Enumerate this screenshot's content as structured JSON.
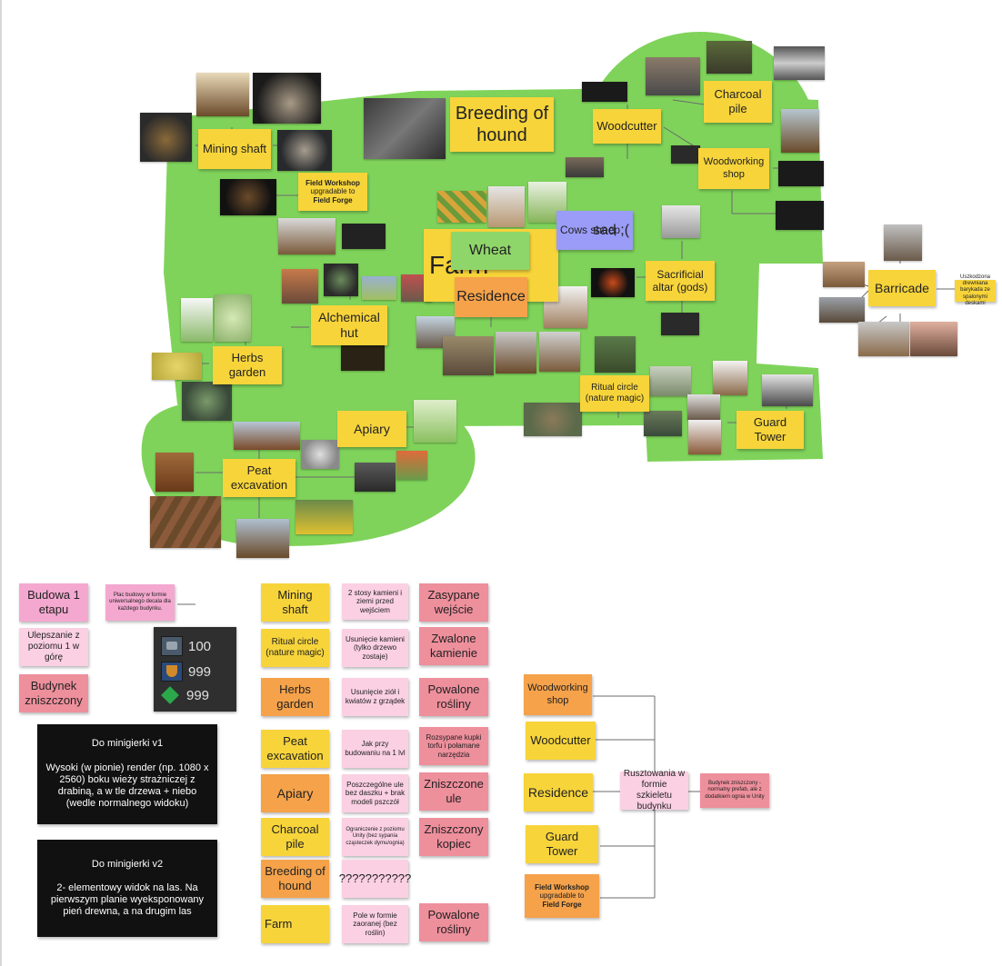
{
  "board": {
    "area_colors": {
      "land": "#7fd35a",
      "sticky_yellow": "#f7d43a",
      "sticky_orange": "#f5a24a",
      "sticky_pink": "#f4a8cf",
      "sticky_red": "#ee8f9c"
    },
    "map_notes": {
      "breeding_of_hound": "Breeding of hound",
      "woodcutter": "Woodcutter",
      "charcoal_pile": "Charcoal pile",
      "mining_shaft": "Mining shaft",
      "field_workshop_title": "Field Workshop",
      "field_workshop_mid": "upgradable to",
      "field_workshop_end": "Field Forge",
      "woodworking_shop": "Woodworking shop",
      "farm_big": "Farm",
      "wheat": "Wheat",
      "cows_sheep": "Cows sheep",
      "sad": "sad ;(",
      "residence": "Residence",
      "sacrificial_altar": "Sacrificial altar (gods)",
      "alchemical_hut": "Alchemical hut",
      "herbs_garden": "Herbs garden",
      "ritual_circle": "Ritual circle (nature magic)",
      "apiary": "Apiary",
      "guard_tower": "Guard Tower",
      "peat_excavation": "Peat excavation",
      "barricade": "Barricade",
      "barricade_note": "Uszkodzona drewniana barykada ze spalonymi deskami"
    },
    "legend": {
      "budowa": "Budowa 1 etapu",
      "budowa_note": "Plac budowy w formie uniwersalnego decala dla każdego budynku.",
      "ulepszanie": "Ulepszanie z poziomu 1 w górę",
      "zniszczony": "Budynek zniszczony",
      "resources": [
        "100",
        "999",
        "999"
      ],
      "minigame1": "Do minigierki v1\n\nWysoki (w pionie) render (np. 1080 x 2560) boku wieży strażniczej z drabiną, a w tle drzewa + niebo (wedle normalnego widoku)",
      "minigame2": "Do minigierki v2\n\n2- elementowy widok na las. Na pierwszym planie wyeksponowany pień drewna, a na drugim las"
    },
    "table": {
      "rows": [
        {
          "name": "Mining shaft",
          "mid": "2 stosy kamieni i ziemi przed wejściem",
          "end": "Zasypane wejście"
        },
        {
          "name": "Ritual circle (nature magic)",
          "mid": "Usunięcie kamieni (tylko drzewo zostaje)",
          "end": "Zwalone kamienie"
        },
        {
          "name": "Herbs garden",
          "mid": "Usunięcie ziół i kwiatów z grządek",
          "end": "Powalone rośliny"
        },
        {
          "name": "Peat excavation",
          "mid": "Jak przy budowaniu na 1 lvl",
          "end": "Rozsypane kupki torfu i połamane narzędzia"
        },
        {
          "name": "Apiary",
          "mid": "Poszczególne ule bez daszku + brak modeli pszczół",
          "end": "Zniszczone ule"
        },
        {
          "name": "Charcoal pile",
          "mid": "Ograniczenie z poziomu Unity (bez sypania cząsteczek dymu/ognia)",
          "end": "Zniszczony kopiec"
        },
        {
          "name": "Breeding of hound",
          "mid": "???????????",
          "end": ""
        },
        {
          "name": "Farm",
          "mid": "Pole w formie zaoranej (bez roślin)",
          "end": "Powalone rośliny"
        }
      ]
    },
    "scaffold": {
      "items": [
        "Woodworking shop",
        "Woodcutter",
        "Residence",
        "Guard Tower"
      ],
      "fw_title": "Field Workshop",
      "fw_mid": "upgradable to",
      "fw_end": "Field Forge",
      "center": "Rusztowania w formie szkieletu budynku",
      "right": "Budynek zniszczony - normalny prefab, ale z dodatkiem ognia w Unity"
    },
    "icons": [
      "stone-resource-icon",
      "shield-resource-icon",
      "emerald-resource-icon"
    ]
  }
}
